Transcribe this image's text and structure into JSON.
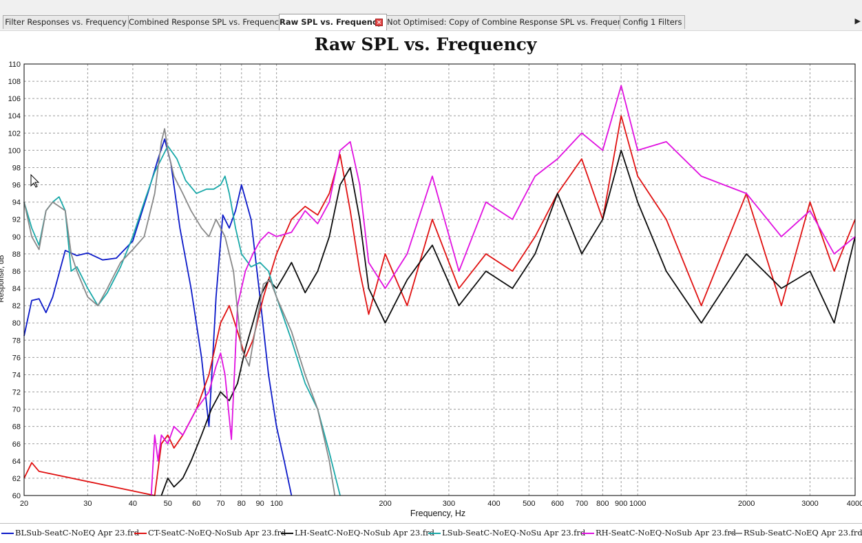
{
  "tabs": [
    {
      "label": "Filter Responses vs. Frequency",
      "active": false
    },
    {
      "label": "Combined Response SPL vs. Frequency",
      "active": false
    },
    {
      "label": "Raw SPL vs. Frequency",
      "active": true,
      "closable": true
    },
    {
      "label": "Not Optimised: Copy of Combine Response SPL vs. Frequency",
      "active": false
    },
    {
      "label": "Config 1 Filters",
      "active": false
    }
  ],
  "tab_scroll_icon": "chevron-right-icon",
  "chart_data": {
    "type": "line",
    "title": "Raw SPL vs. Frequency",
    "xlabel": "Frequency, Hz",
    "ylabel": "Response, dB",
    "xscale": "log",
    "xlim": [
      20,
      4000
    ],
    "ylim": [
      60,
      110
    ],
    "x_ticks": [
      20,
      30,
      40,
      50,
      60,
      70,
      80,
      90,
      100,
      200,
      300,
      400,
      500,
      600,
      700,
      800,
      900,
      1000,
      2000,
      3000,
      4000
    ],
    "x_tick_labels": [
      "20",
      "30",
      "40",
      "50",
      "60",
      "70",
      "80",
      "90",
      "100",
      "200",
      "300",
      "400",
      "500",
      "600",
      "700",
      "800",
      "900",
      "1000",
      "2000",
      "3000",
      "4000"
    ],
    "y_ticks": [
      60,
      62,
      64,
      66,
      68,
      70,
      72,
      74,
      76,
      78,
      80,
      82,
      84,
      86,
      88,
      90,
      92,
      94,
      96,
      98,
      100,
      102,
      104,
      106,
      108,
      110
    ],
    "grid": true,
    "legend_position": "bottom",
    "series": [
      {
        "name": "BLSub-SeatC-NoEQ Apr 23.frd",
        "color": "#0a18c8",
        "x": [
          20,
          21,
          22,
          23,
          24,
          26,
          28,
          30,
          33,
          36,
          40,
          44,
          47,
          49,
          51,
          54,
          58,
          62,
          65,
          68,
          71,
          74,
          77,
          80,
          85,
          90,
          95,
          100,
          105,
          110
        ],
        "y": [
          78.5,
          82.6,
          82.8,
          81.2,
          83.0,
          88.4,
          87.8,
          88.1,
          87.3,
          87.5,
          89.5,
          95.0,
          99.0,
          101.3,
          98.5,
          91.0,
          84.0,
          76.0,
          68.0,
          83.0,
          92.5,
          91.0,
          93.0,
          96.0,
          92.0,
          83.0,
          74.0,
          68.0,
          64.0,
          60.0
        ]
      },
      {
        "name": "CT-SeatC-NoEQ-NoSub Apr 23.frd",
        "color": "#e01010",
        "x": [
          20,
          21,
          22,
          46,
          48,
          50,
          52,
          55,
          60,
          65,
          70,
          74,
          78,
          82,
          86,
          92,
          100,
          110,
          120,
          130,
          140,
          150,
          160,
          170,
          180,
          200,
          230,
          270,
          320,
          380,
          450,
          520,
          600,
          700,
          800,
          900,
          1000,
          1200,
          1500,
          2000,
          2500,
          3000,
          3500,
          4000
        ],
        "y": [
          62.0,
          63.8,
          62.8,
          60.0,
          66.0,
          67.0,
          65.5,
          67.0,
          70.0,
          74.0,
          80.0,
          82.0,
          79.0,
          76.0,
          78.0,
          83.0,
          88.0,
          92.0,
          93.5,
          92.5,
          95.0,
          99.5,
          93.0,
          86.0,
          81.0,
          88.0,
          82.0,
          92.0,
          84.0,
          88.0,
          86.0,
          90.0,
          95.0,
          99.0,
          92.0,
          104.0,
          97.0,
          92.0,
          82.0,
          95.0,
          82.0,
          94.0,
          86.0,
          92.0
        ]
      },
      {
        "name": "LH-SeatC-NoEQ-NoSub Apr 23.frd",
        "color": "#0a0a0a",
        "x": [
          48,
          50,
          52,
          55,
          58,
          62,
          66,
          70,
          74,
          78,
          82,
          86,
          90,
          95,
          100,
          105,
          110,
          120,
          130,
          140,
          150,
          160,
          170,
          180,
          200,
          230,
          270,
          320,
          380,
          450,
          520,
          600,
          700,
          800,
          900,
          1000,
          1200,
          1500,
          2000,
          2500,
          3000,
          3500,
          4000
        ],
        "y": [
          60.0,
          62.0,
          61.0,
          62.0,
          64.0,
          67.0,
          70.0,
          72.0,
          71.0,
          73.0,
          77.0,
          80.0,
          83.0,
          85.0,
          84.0,
          85.5,
          87.0,
          83.5,
          86.0,
          90.0,
          96.0,
          98.0,
          92.0,
          84.0,
          80.0,
          85.0,
          89.0,
          82.0,
          86.0,
          84.0,
          88.0,
          95.0,
          88.0,
          92.0,
          100.0,
          94.0,
          86.0,
          80.0,
          88.0,
          84.0,
          86.0,
          80.0,
          90.0
        ]
      },
      {
        "name": "LSub-SeatC-NoEQ-NoSu Apr 23.frd",
        "color": "#18a8a8",
        "x": [
          20,
          21,
          22,
          23,
          24,
          25,
          26,
          27,
          28,
          30,
          32,
          34,
          37,
          40,
          43,
          46,
          48,
          50,
          53,
          56,
          60,
          64,
          67,
          70,
          72,
          74,
          77,
          80,
          85,
          90,
          95,
          100,
          110,
          120,
          130,
          140,
          150
        ],
        "y": [
          94.0,
          91.0,
          89.0,
          93.0,
          94.0,
          94.6,
          93.0,
          86.0,
          86.5,
          84.0,
          82.0,
          83.5,
          86.5,
          90.0,
          94.0,
          97.5,
          99.0,
          100.5,
          99.0,
          96.5,
          95.0,
          95.5,
          95.5,
          96.0,
          97.0,
          95.0,
          91.0,
          88.0,
          86.5,
          87.0,
          86.0,
          83.0,
          78.0,
          73.0,
          70.0,
          65.0,
          60.0
        ]
      },
      {
        "name": "RH-SeatC-NoEQ-NoSub Apr 23.frd",
        "color": "#e010e0",
        "x": [
          45,
          46,
          47,
          48,
          50,
          52,
          55,
          60,
          65,
          68,
          70,
          72,
          75,
          78,
          82,
          86,
          90,
          95,
          100,
          110,
          120,
          130,
          140,
          150,
          160,
          170,
          180,
          200,
          230,
          270,
          320,
          380,
          450,
          520,
          600,
          700,
          800,
          900,
          1000,
          1200,
          1500,
          2000,
          2500,
          3000,
          3500,
          4000
        ],
        "y": [
          60.0,
          67.0,
          64.0,
          67.0,
          66.0,
          68.0,
          67.0,
          70.0,
          72.0,
          75.0,
          76.5,
          74.0,
          66.5,
          82.0,
          86.0,
          88.0,
          89.5,
          90.5,
          90.0,
          90.5,
          93.0,
          91.5,
          94.0,
          100.0,
          101.0,
          96.0,
          87.0,
          84.0,
          88.0,
          97.0,
          86.0,
          94.0,
          92.0,
          97.0,
          99.0,
          102.0,
          100.0,
          107.5,
          100.0,
          101.0,
          97.0,
          95.0,
          90.0,
          93.0,
          88.0,
          90.0
        ]
      },
      {
        "name": "RSub-SeatC-NoEQ Apr 23.frd",
        "color": "#888888",
        "x": [
          20,
          21,
          22,
          23,
          24,
          25,
          26,
          27,
          28,
          30,
          32,
          34,
          37,
          40,
          43,
          46,
          48,
          49,
          50,
          52,
          55,
          58,
          62,
          65,
          68,
          72,
          76,
          80,
          84,
          88,
          92,
          96,
          100,
          110,
          120,
          130,
          140,
          145
        ],
        "y": [
          94.0,
          90.0,
          88.5,
          93.0,
          94.0,
          93.5,
          93.0,
          88.0,
          86.0,
          83.0,
          82.0,
          84.0,
          87.0,
          88.5,
          90.0,
          95.0,
          101.0,
          102.5,
          100.0,
          97.0,
          95.0,
          93.0,
          91.0,
          90.0,
          92.0,
          90.0,
          86.0,
          77.0,
          75.0,
          80.0,
          84.5,
          85.0,
          83.0,
          79.0,
          74.0,
          70.0,
          64.0,
          60.0
        ]
      }
    ]
  }
}
